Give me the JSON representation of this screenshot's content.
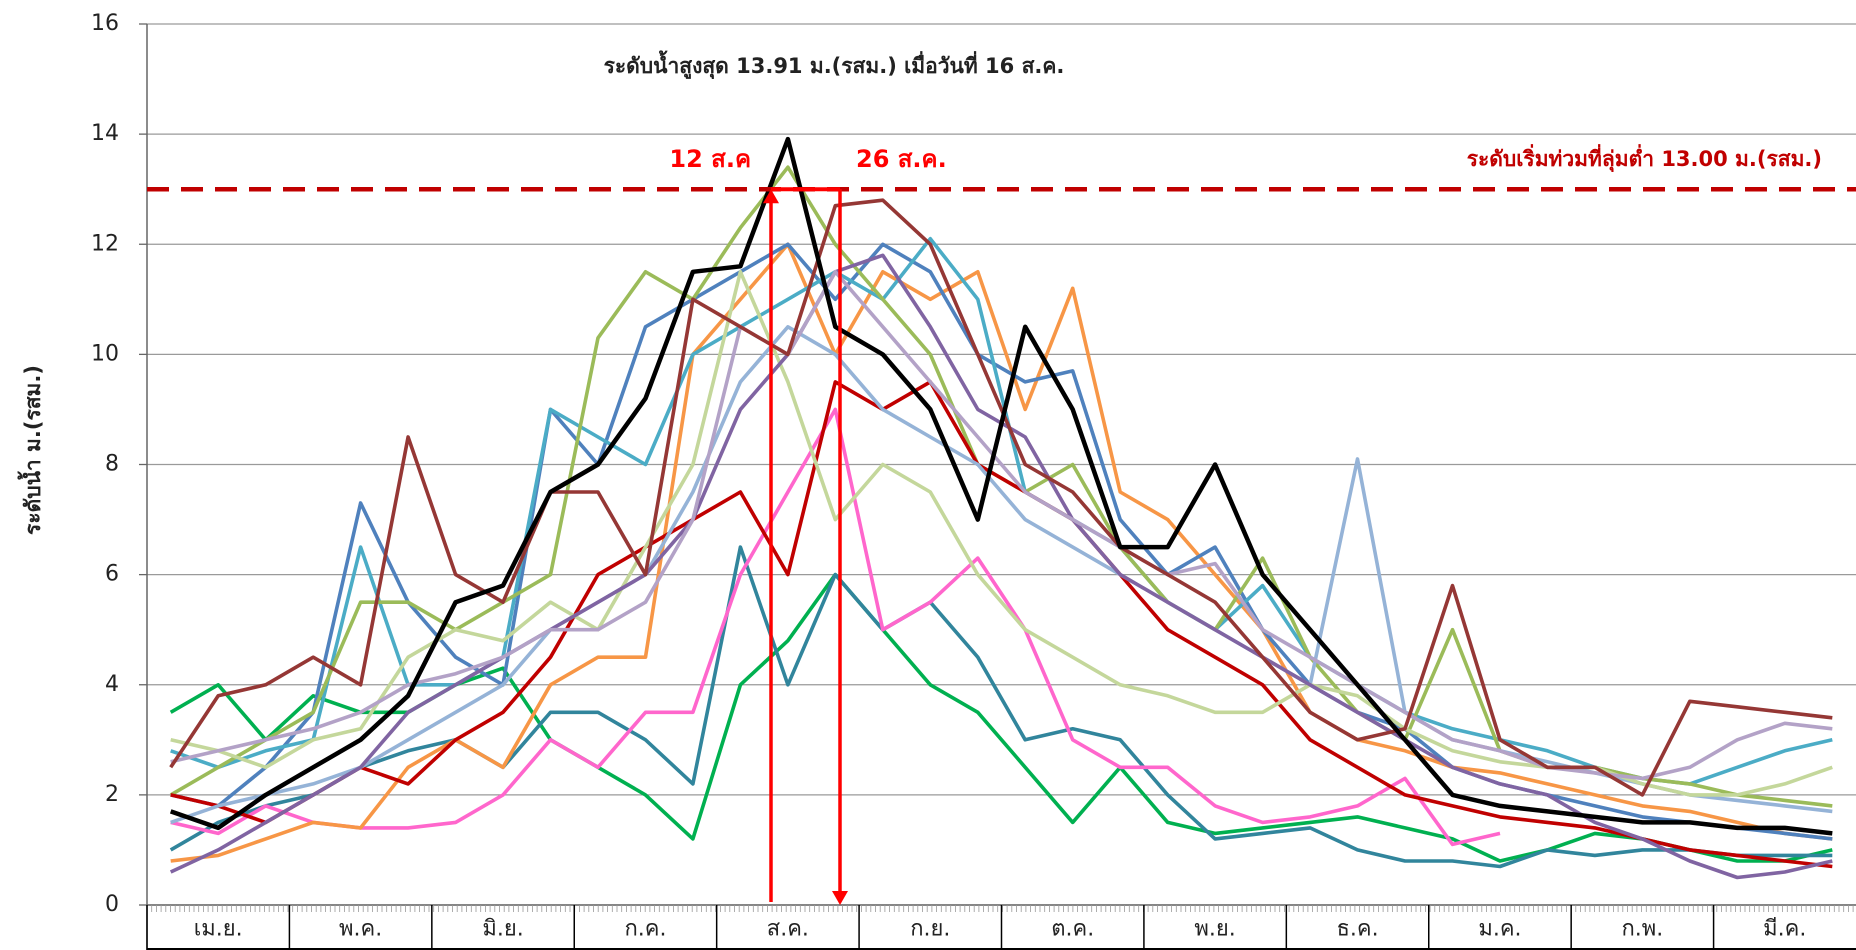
{
  "chart_data": {
    "type": "line",
    "annotation": "ระดับน้ำสูงสุด 13.91 ม.(รสม.) เมื่อวันที่ 16 ส.ค.",
    "threshold": 13,
    "threshold_label": "ระดับเริ่มท่วมที่ลุ่มต่ำ 13.00 ม.(รสม.)",
    "threshold_color": "#c00000",
    "start_marker": "12 ส.ค",
    "end_marker": "26 ส.ค.",
    "y_label": "ระดับน้ำ ม.(รสม.)",
    "categories": [
      null,
      "เม.ย.",
      null,
      null,
      "พ.ค.",
      null,
      null,
      "มิ.ย.",
      null,
      null,
      "ก.ค.",
      null,
      null,
      "ส.ค.",
      null,
      null,
      "ก.ย.",
      null,
      null,
      "ต.ค.",
      null,
      null,
      "พ.ย.",
      null,
      null,
      "ธ.ค.",
      null,
      null,
      "ม.ค.",
      null,
      null,
      "ก.พ.",
      null,
      null,
      "มี.ค.",
      null
    ],
    "ylim": [
      0,
      16
    ],
    "yticks": [
      0,
      2,
      4,
      6,
      8,
      10,
      12,
      14,
      16
    ],
    "grid": true,
    "series": [
      {
        "color": "#00b050",
        "values": [
          3.5,
          4.0,
          3.0,
          3.8,
          3.5,
          3.5,
          4.0,
          4.3,
          3.0,
          2.5,
          2.0,
          1.2,
          4.0,
          4.8,
          6.0,
          5.0,
          4.0,
          3.5,
          2.5,
          1.5,
          2.5,
          1.5,
          1.3,
          1.4,
          1.5,
          1.6,
          1.4,
          1.2,
          0.8,
          1.0,
          1.3,
          1.2,
          1.0,
          0.8,
          0.8,
          1.0
        ]
      },
      {
        "color": "#31859c",
        "values": [
          1.0,
          1.5,
          1.8,
          2.0,
          2.5,
          2.8,
          3.0,
          2.5,
          3.5,
          3.5,
          3.0,
          2.2,
          6.5,
          4.0,
          6.0,
          5.0,
          5.5,
          4.5,
          3.0,
          3.2,
          3.0,
          2.0,
          1.2,
          1.3,
          1.4,
          1.0,
          0.8,
          0.8,
          0.7,
          1.0,
          0.9,
          1.0,
          1.0,
          0.9,
          0.9,
          0.9
        ]
      },
      {
        "color": "#ff66cc",
        "values": [
          1.5,
          1.3,
          1.8,
          1.5,
          1.4,
          1.4,
          1.5,
          2.0,
          3.0,
          2.5,
          3.5,
          3.5,
          6.0,
          7.5,
          9.0,
          5.0,
          5.5,
          6.3,
          5.0,
          3.0,
          2.5,
          2.5,
          1.8,
          1.5,
          1.6,
          1.8,
          2.3,
          1.1,
          1.3,
          null,
          null,
          null,
          null,
          null,
          null,
          null
        ]
      },
      {
        "color": "#f79646",
        "values": [
          0.8,
          0.9,
          1.2,
          1.5,
          1.4,
          2.5,
          3.0,
          2.5,
          4.0,
          4.5,
          4.5,
          10.0,
          11.0,
          12.0,
          10.0,
          11.5,
          11.0,
          11.5,
          9.0,
          11.2,
          7.5,
          7.0,
          6.0,
          5.0,
          3.5,
          3.0,
          2.8,
          2.5,
          2.4,
          2.2,
          2.0,
          1.8,
          1.7,
          1.5,
          1.3,
          1.2
        ]
      },
      {
        "color": "#4f81bd",
        "values": [
          2.0,
          1.8,
          2.5,
          3.5,
          7.3,
          5.5,
          4.5,
          4.0,
          9.0,
          8.0,
          10.5,
          11.0,
          11.5,
          12.0,
          11.0,
          12.0,
          11.5,
          10.0,
          9.5,
          9.7,
          7.0,
          6.0,
          6.5,
          5.0,
          4.0,
          3.5,
          3.2,
          2.5,
          2.2,
          2.0,
          1.8,
          1.6,
          1.5,
          1.4,
          1.3,
          1.2
        ]
      },
      {
        "color": "#4bacc6",
        "values": [
          2.8,
          2.5,
          2.8,
          3.0,
          6.5,
          4.0,
          4.0,
          4.5,
          9.0,
          8.5,
          8.0,
          10.0,
          10.5,
          11.0,
          11.5,
          11.0,
          12.1,
          11.0,
          7.5,
          7.0,
          6.5,
          5.5,
          5.0,
          5.8,
          4.5,
          4.0,
          3.5,
          3.2,
          3.0,
          2.8,
          2.5,
          2.3,
          2.2,
          2.5,
          2.8,
          3.0
        ]
      },
      {
        "color": "#9bbb59",
        "values": [
          2.0,
          2.5,
          3.0,
          3.5,
          5.5,
          5.5,
          5.0,
          5.5,
          6.0,
          10.3,
          11.5,
          11.0,
          12.3,
          13.4,
          12.0,
          11.0,
          10.0,
          8.0,
          7.5,
          8.0,
          6.5,
          5.5,
          5.0,
          6.3,
          4.5,
          3.5,
          3.0,
          5.0,
          2.8,
          2.5,
          2.5,
          2.3,
          2.2,
          2.0,
          1.9,
          1.8
        ]
      },
      {
        "color": "#c00000",
        "values": [
          2.0,
          1.8,
          1.5,
          2.0,
          2.5,
          2.2,
          3.0,
          3.5,
          4.5,
          6.0,
          6.5,
          7.0,
          7.5,
          6.0,
          9.5,
          9.0,
          9.5,
          8.0,
          7.5,
          7.0,
          6.0,
          5.0,
          4.5,
          4.0,
          3.0,
          2.5,
          2.0,
          1.8,
          1.6,
          1.5,
          1.4,
          1.2,
          1.0,
          0.9,
          0.8,
          0.7
        ]
      },
      {
        "color": "#95b3d7",
        "values": [
          1.5,
          1.8,
          2.0,
          2.2,
          2.5,
          3.0,
          3.5,
          4.0,
          5.0,
          5.5,
          6.0,
          7.5,
          9.5,
          10.5,
          10.0,
          9.0,
          8.5,
          8.0,
          7.0,
          6.5,
          6.0,
          5.5,
          5.0,
          4.5,
          4.0,
          8.1,
          3.5,
          3.0,
          2.8,
          2.6,
          2.4,
          2.2,
          2.0,
          1.9,
          1.8,
          1.7
        ]
      },
      {
        "color": "#c4d79b",
        "values": [
          3.0,
          2.8,
          2.5,
          3.0,
          3.2,
          4.5,
          5.0,
          4.8,
          5.5,
          5.0,
          6.5,
          8.0,
          11.5,
          9.5,
          7.0,
          8.0,
          7.5,
          6.0,
          5.0,
          4.5,
          4.0,
          3.8,
          3.5,
          3.5,
          4.0,
          3.8,
          3.2,
          2.8,
          2.6,
          2.5,
          2.5,
          2.2,
          2.0,
          2.0,
          2.2,
          2.5
        ]
      },
      {
        "color": "#8064a2",
        "values": [
          0.6,
          1.0,
          1.5,
          2.0,
          2.5,
          3.5,
          4.0,
          4.5,
          5.0,
          5.5,
          6.0,
          7.0,
          9.0,
          10.0,
          11.5,
          11.8,
          10.5,
          9.0,
          8.5,
          7.0,
          6.0,
          5.5,
          5.0,
          4.5,
          4.0,
          3.5,
          3.0,
          2.5,
          2.2,
          2.0,
          1.5,
          1.2,
          0.8,
          0.5,
          0.6,
          0.8
        ]
      },
      {
        "color": "#b3a2c7",
        "values": [
          2.6,
          2.8,
          3.0,
          3.2,
          3.5,
          4.0,
          4.2,
          4.5,
          5.0,
          5.0,
          5.5,
          7.0,
          10.5,
          10.0,
          11.5,
          10.5,
          9.5,
          8.5,
          7.5,
          7.0,
          6.5,
          6.0,
          6.2,
          5.0,
          4.5,
          4.0,
          3.5,
          3.0,
          2.8,
          2.5,
          2.4,
          2.3,
          2.5,
          3.0,
          3.3,
          3.2
        ]
      },
      {
        "color": "#953735",
        "values": [
          2.5,
          3.8,
          4.0,
          4.5,
          4.0,
          8.5,
          6.0,
          5.5,
          7.5,
          7.5,
          6.0,
          11.0,
          10.5,
          10.0,
          12.7,
          12.8,
          12.0,
          10.0,
          8.0,
          7.5,
          6.5,
          6.0,
          5.5,
          4.5,
          3.5,
          3.0,
          3.2,
          5.8,
          3.0,
          2.5,
          2.5,
          2.0,
          3.7,
          3.6,
          3.5,
          3.4
        ]
      },
      {
        "color": "#000000",
        "values": [
          1.7,
          1.4,
          2.0,
          2.5,
          3.0,
          3.8,
          5.5,
          5.8,
          7.5,
          8.0,
          9.2,
          11.5,
          11.6,
          13.91,
          10.5,
          10.0,
          9.0,
          7.0,
          10.5,
          9.0,
          6.5,
          6.5,
          8.0,
          6.0,
          5.0,
          4.0,
          3.0,
          2.0,
          1.8,
          1.7,
          1.6,
          1.5,
          1.5,
          1.4,
          1.4,
          1.3
        ]
      }
    ]
  }
}
